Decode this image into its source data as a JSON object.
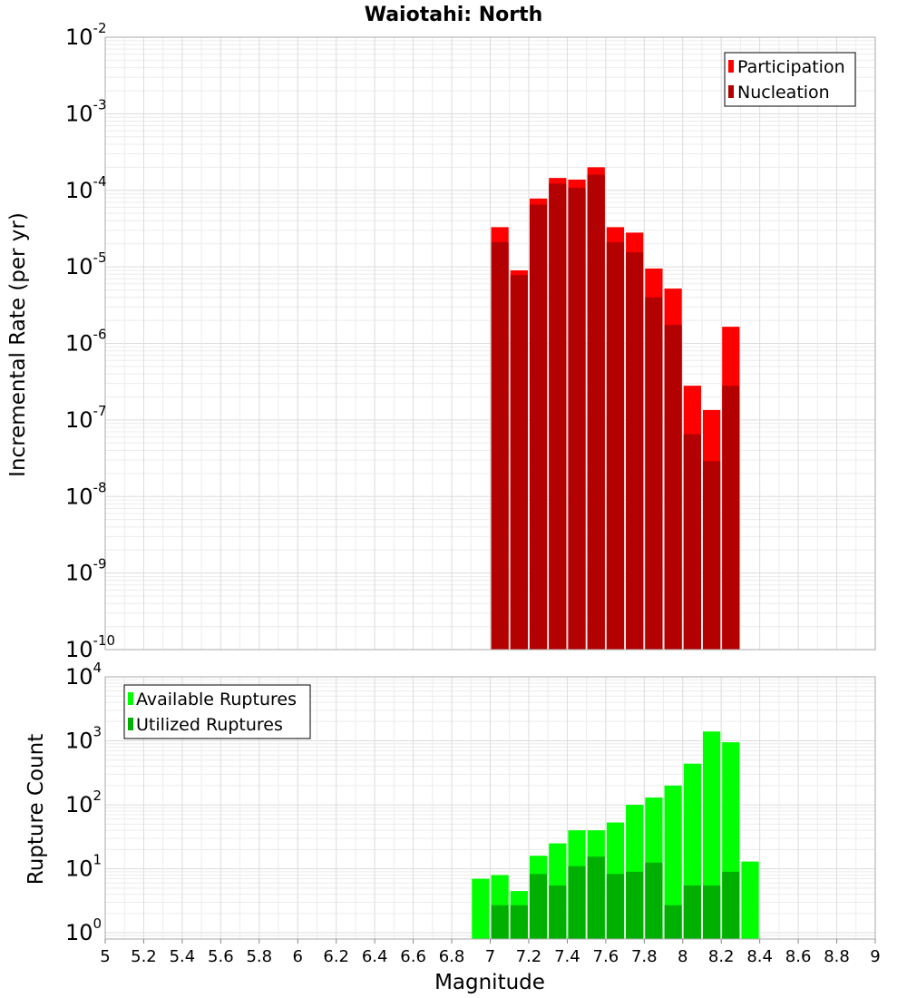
{
  "chart_data": [
    {
      "type": "bar",
      "title": "Waiotahi: North",
      "xlabel": "",
      "ylabel": "Incremental Rate (per yr)",
      "yscale": "log",
      "ylim": [
        1e-10,
        0.01
      ],
      "xlim": [
        5,
        9
      ],
      "grid": true,
      "legend_position": "top-right",
      "bar_width": 0.1,
      "ytick_exponents": [
        -10,
        -9,
        -8,
        -7,
        -6,
        -5,
        -4,
        -3,
        -2
      ],
      "series": [
        {
          "name": "Participation",
          "color": "#ff0000",
          "x": [
            7.05,
            7.15,
            7.25,
            7.35,
            7.45,
            7.55,
            7.65,
            7.75,
            7.85,
            7.95,
            8.05,
            8.15,
            8.25
          ],
          "values": [
            3.3e-05,
            9e-06,
            7.8e-05,
            0.000145,
            0.000138,
            0.0002,
            3.3e-05,
            2.8e-05,
            9.5e-06,
            5.2e-06,
            2.8e-07,
            1.35e-07,
            1.65e-06
          ]
        },
        {
          "name": "Nucleation",
          "color": "#b30000",
          "x": [
            7.05,
            7.15,
            7.25,
            7.35,
            7.45,
            7.55,
            7.65,
            7.75,
            7.85,
            7.95,
            8.05,
            8.15,
            8.25
          ],
          "values": [
            2.1e-05,
            7.8e-06,
            6.5e-05,
            0.000122,
            0.000108,
            0.00016,
            2.1e-05,
            1.55e-05,
            4e-06,
            1.75e-06,
            6.5e-08,
            2.9e-08,
            2.8e-07
          ]
        }
      ]
    },
    {
      "type": "bar",
      "title": "",
      "xlabel": "Magnitude",
      "ylabel": "Rupture Count",
      "yscale": "log",
      "ylim": [
        0.8,
        10000
      ],
      "xlim": [
        5,
        9
      ],
      "grid": true,
      "legend_position": "top-left",
      "bar_width": 0.1,
      "ytick_exponents": [
        0,
        1,
        2,
        3,
        4
      ],
      "xticks": [
        "5",
        "5.2",
        "5.4",
        "5.6",
        "5.8",
        "6",
        "6.2",
        "6.4",
        "6.6",
        "6.8",
        "7",
        "7.2",
        "7.4",
        "7.6",
        "7.8",
        "8",
        "8.2",
        "8.4",
        "8.6",
        "8.8",
        "9"
      ],
      "series": [
        {
          "name": "Available Ruptures",
          "color": "#00ff00",
          "x": [
            6.95,
            7.05,
            7.15,
            7.25,
            7.35,
            7.45,
            7.55,
            7.65,
            7.75,
            7.85,
            7.95,
            8.05,
            8.15,
            8.25,
            8.35
          ],
          "values": [
            7,
            8,
            4.5,
            16,
            25,
            40,
            40,
            53,
            100,
            130,
            200,
            440,
            1400,
            950,
            13
          ]
        },
        {
          "name": "Utilized Ruptures",
          "color": "#00b000",
          "x": [
            7.05,
            7.15,
            7.25,
            7.35,
            7.45,
            7.55,
            7.65,
            7.75,
            7.85,
            7.95,
            8.05,
            8.15,
            8.25
          ],
          "values": [
            2.7,
            2.7,
            8.3,
            5.5,
            11,
            15.5,
            8.3,
            9,
            12.5,
            2.7,
            5.5,
            5.5,
            9
          ]
        }
      ]
    }
  ]
}
